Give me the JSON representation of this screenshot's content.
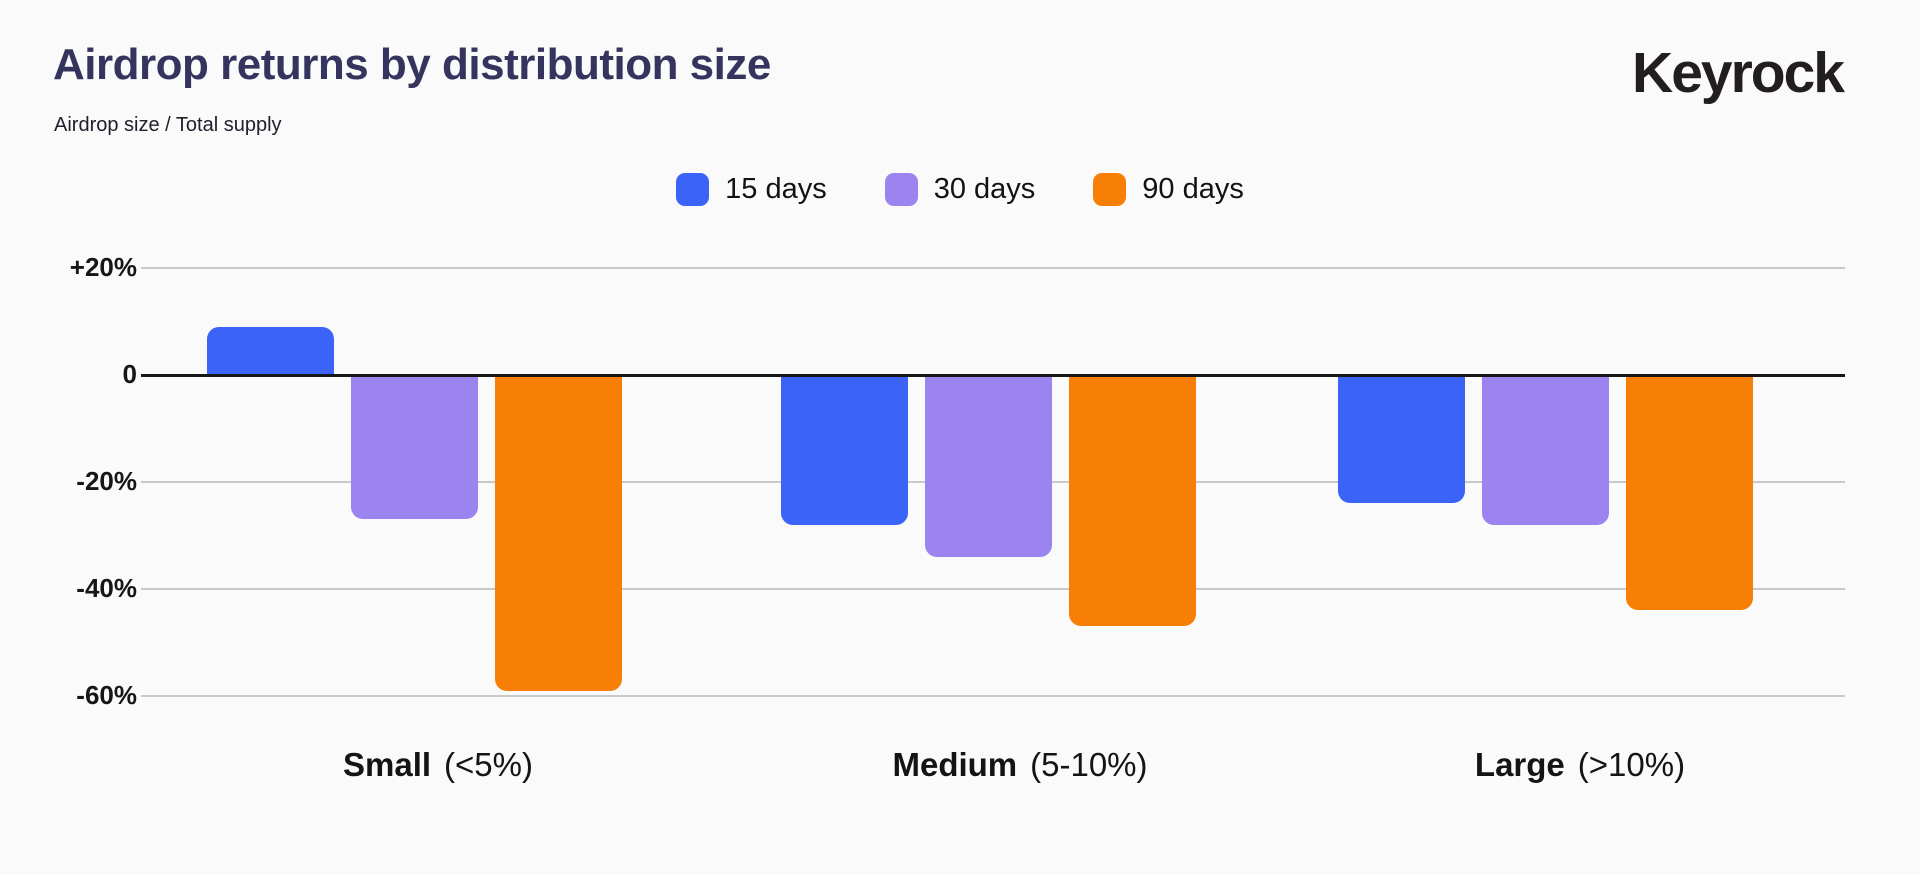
{
  "page": {
    "background": "#fafafa"
  },
  "header": {
    "title": "Airdrop returns by distribution size",
    "subtitle": "Airdrop size / Total supply",
    "logo_text": "Keyrock"
  },
  "chart_data": {
    "type": "bar",
    "title": "Airdrop returns by distribution size",
    "subtitle": "Airdrop size / Total supply",
    "unit": "percent",
    "categories": [
      {
        "label": "Small",
        "qualifier": "(<5%)"
      },
      {
        "label": "Medium",
        "qualifier": "(5-10%)"
      },
      {
        "label": "Large",
        "qualifier": "(>10%)"
      }
    ],
    "series": [
      {
        "name": "15 days",
        "color": "#3b63f7",
        "values": [
          9,
          -28,
          -24
        ]
      },
      {
        "name": "30 days",
        "color": "#9c84f0",
        "values": [
          -27,
          -34,
          -28
        ]
      },
      {
        "name": "90 days",
        "color": "#f77f05",
        "values": [
          -59,
          -47,
          -44
        ]
      }
    ],
    "yticks": [
      {
        "label": "+20%",
        "value": 20
      },
      {
        "label": "0",
        "value": 0
      },
      {
        "label": "-20%",
        "value": -20
      },
      {
        "label": "-40%",
        "value": -40
      },
      {
        "label": "-60%",
        "value": -60
      }
    ],
    "ylim": [
      -66,
      26
    ],
    "xlabel": "",
    "ylabel": "",
    "grid": true,
    "legend_position": "top-center",
    "baseline_value": 0
  }
}
